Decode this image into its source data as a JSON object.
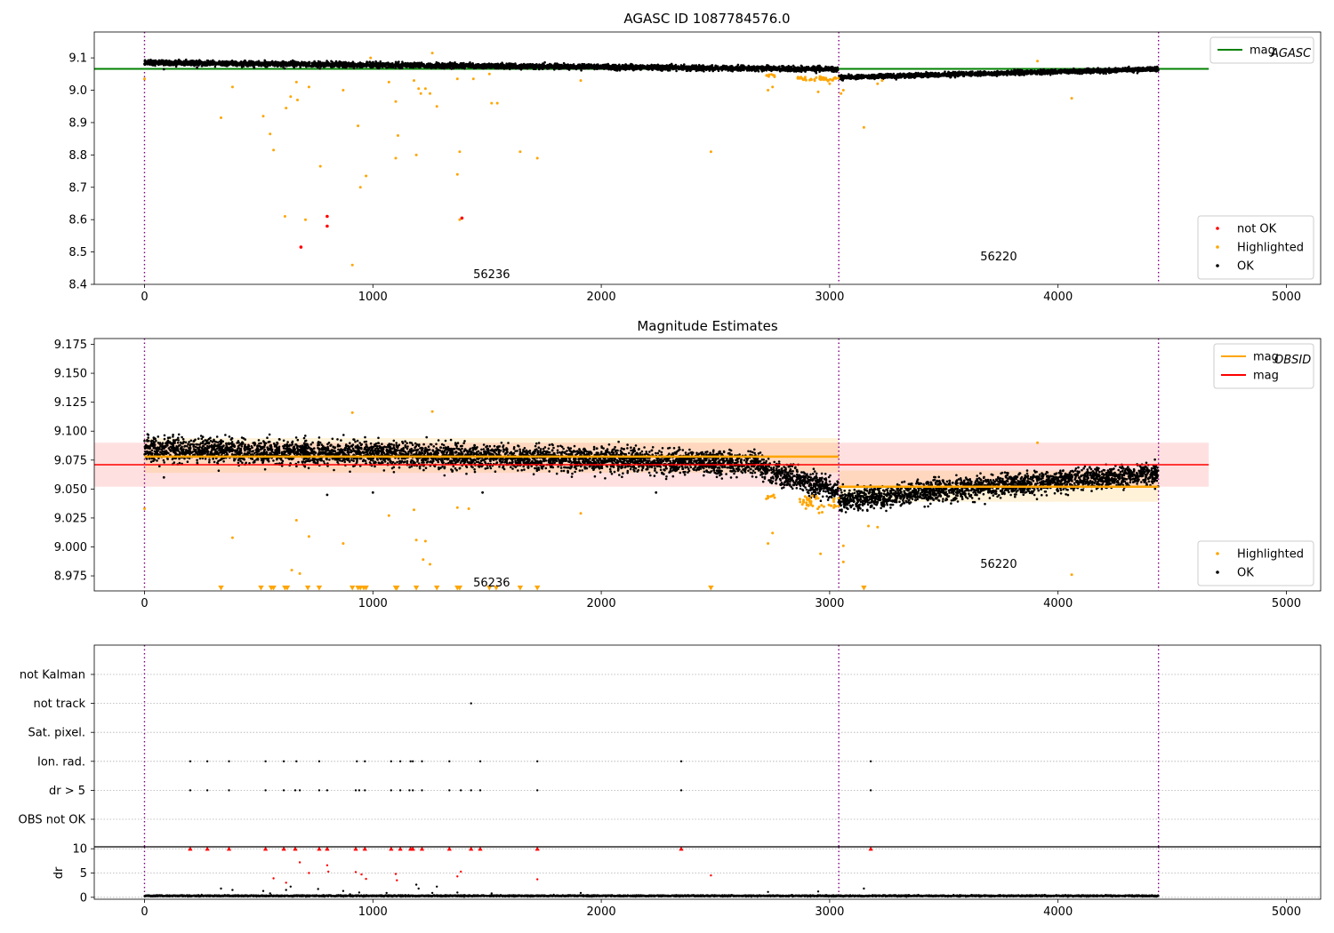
{
  "figure_title": "AGASC ID 1087784576.0",
  "chart_data": [
    {
      "id": "panel1",
      "type": "scatter",
      "title": "",
      "xlim": [
        -220,
        5150
      ],
      "ylim": [
        8.4,
        9.18
      ],
      "xticks": [
        0,
        1000,
        2000,
        3000,
        4000,
        5000
      ],
      "yticks": [
        8.4,
        8.5,
        8.6,
        8.7,
        8.8,
        8.9,
        9.0,
        9.1
      ],
      "ytick_labels": [
        "8.4",
        "8.5",
        "8.6",
        "8.7",
        "8.8",
        "8.9",
        "9.0",
        "9.1"
      ],
      "vlines": [
        0,
        3040,
        4440
      ],
      "hline": {
        "label": "mag_AGASC",
        "value": 9.066,
        "x_range": [
          -220,
          4660
        ],
        "color": "#008000"
      },
      "annotations": [
        {
          "text": "56236",
          "x": 1520,
          "y": 8.43
        },
        {
          "text": "56220",
          "x": 3740,
          "y": 8.485
        }
      ],
      "ok_points": {
        "segments": [
          {
            "x_start": 0,
            "x_end": 3040,
            "start_value": 9.085,
            "end_value": 9.065,
            "noise": 0.008,
            "density": 1.6
          },
          {
            "x_start": 3040,
            "x_end": 4440,
            "start_value": 9.04,
            "end_value": 9.065,
            "noise": 0.007,
            "density": 1.6
          }
        ],
        "extra": [
          [
            85,
            9.065
          ],
          [
            230,
            9.07
          ],
          [
            480,
            9.07
          ],
          [
            1060,
            9.07
          ]
        ]
      },
      "highlighted_points": [
        [
          0,
          9.035
        ],
        [
          335,
          8.915
        ],
        [
          385,
          9.01
        ],
        [
          520,
          8.92
        ],
        [
          550,
          8.865
        ],
        [
          565,
          8.815
        ],
        [
          615,
          8.61
        ],
        [
          620,
          8.945
        ],
        [
          640,
          8.98
        ],
        [
          665,
          9.025
        ],
        [
          670,
          8.97
        ],
        [
          705,
          8.6
        ],
        [
          720,
          9.01
        ],
        [
          770,
          8.765
        ],
        [
          870,
          9.0
        ],
        [
          910,
          8.46
        ],
        [
          935,
          8.89
        ],
        [
          945,
          8.7
        ],
        [
          970,
          8.735
        ],
        [
          990,
          9.1
        ],
        [
          1070,
          9.025
        ],
        [
          1100,
          8.79
        ],
        [
          1100,
          8.965
        ],
        [
          1110,
          8.86
        ],
        [
          1180,
          9.03
        ],
        [
          1190,
          8.8
        ],
        [
          1200,
          9.005
        ],
        [
          1210,
          8.99
        ],
        [
          1230,
          9.005
        ],
        [
          1250,
          8.99
        ],
        [
          1260,
          9.115
        ],
        [
          1280,
          8.95
        ],
        [
          1370,
          8.74
        ],
        [
          1370,
          9.035
        ],
        [
          1380,
          8.81
        ],
        [
          1380,
          8.6
        ],
        [
          1440,
          9.035
        ],
        [
          1510,
          9.05
        ],
        [
          1520,
          8.96
        ],
        [
          1545,
          8.96
        ],
        [
          1645,
          8.81
        ],
        [
          1720,
          8.79
        ],
        [
          1910,
          9.03
        ],
        [
          2480,
          8.81
        ],
        [
          2730,
          9.0
        ],
        [
          2750,
          9.01
        ],
        [
          2950,
          8.995
        ],
        [
          3000,
          9.02
        ],
        [
          3050,
          8.99
        ],
        [
          3060,
          9.0
        ],
        [
          3150,
          8.885
        ],
        [
          3210,
          9.02
        ],
        [
          3230,
          9.03
        ],
        [
          4060,
          8.975
        ],
        [
          3910,
          9.09
        ]
      ],
      "highlighted_clusters": [
        {
          "x_start": 2720,
          "x_end": 2760,
          "center": 9.045,
          "spread": 0.004,
          "count": 10
        },
        {
          "x_start": 2860,
          "x_end": 3040,
          "center": 9.035,
          "spread": 0.006,
          "count": 45
        }
      ],
      "notok_points": [
        [
          685,
          8.515
        ],
        [
          800,
          8.61
        ],
        [
          800,
          8.58
        ],
        [
          1390,
          8.605
        ]
      ],
      "legends": [
        {
          "entries": [
            {
              "label": "mag",
              "subscript": "AGASC",
              "marker": "line",
              "color": "#008000"
            }
          ],
          "position": "top-right"
        },
        {
          "entries": [
            {
              "label": "not OK",
              "marker": "dot",
              "color": "#ff0000"
            },
            {
              "label": "Highlighted",
              "marker": "dot",
              "color": "#ffa500"
            },
            {
              "label": "OK",
              "marker": "dot",
              "color": "#000000"
            }
          ],
          "position": "bottom-right"
        }
      ]
    },
    {
      "id": "panel2",
      "type": "scatter",
      "title": "Magnitude Estimates",
      "xlim": [
        -220,
        5150
      ],
      "ylim": [
        8.962,
        9.18
      ],
      "xticks": [
        0,
        1000,
        2000,
        3000,
        4000,
        5000
      ],
      "yticks": [
        8.975,
        9.0,
        9.025,
        9.05,
        9.075,
        9.1,
        9.125,
        9.15,
        9.175
      ],
      "ytick_labels": [
        "8.975",
        "9.000",
        "9.025",
        "9.050",
        "9.075",
        "9.100",
        "9.125",
        "9.150",
        "9.175"
      ],
      "vlines": [
        0,
        3040,
        4440
      ],
      "mag_band": {
        "value": 9.071,
        "low": 9.052,
        "high": 9.09,
        "x_range": [
          -220,
          4660
        ],
        "color": "#ff0000"
      },
      "obsid_segments": [
        {
          "x_range": [
            0,
            3040
          ],
          "value": 9.078,
          "low": 9.064,
          "high": 9.094
        },
        {
          "x_range": [
            3040,
            4440
          ],
          "value": 9.052,
          "low": 9.039,
          "high": 9.066
        }
      ],
      "annotations": [
        {
          "text": "56236",
          "x": 1520,
          "y": 8.969
        },
        {
          "text": "56220",
          "x": 3740,
          "y": 8.985
        }
      ],
      "ok_points": {
        "segments": [
          {
            "x_start": 0,
            "x_end": 2700,
            "start_value": 9.085,
            "end_value": 9.072,
            "noise": 0.011,
            "density": 1.5
          },
          {
            "x_start": 2700,
            "x_end": 3040,
            "start_value": 9.068,
            "end_value": 9.048,
            "noise": 0.01,
            "density": 1.5
          },
          {
            "x_start": 3040,
            "x_end": 3350,
            "start_value": 9.04,
            "end_value": 9.045,
            "noise": 0.01,
            "density": 1.5
          },
          {
            "x_start": 3350,
            "x_end": 4440,
            "start_value": 9.047,
            "end_value": 9.063,
            "noise": 0.01,
            "density": 1.5
          }
        ],
        "extra": [
          [
            85,
            9.06
          ],
          [
            800,
            9.045
          ],
          [
            1000,
            9.047
          ],
          [
            1480,
            9.047
          ],
          [
            1870,
            9.07
          ],
          [
            2240,
            9.047
          ]
        ]
      },
      "highlighted_points": [
        [
          0,
          9.033
        ],
        [
          385,
          9.008
        ],
        [
          665,
          9.023
        ],
        [
          645,
          8.98
        ],
        [
          680,
          8.977
        ],
        [
          720,
          9.009
        ],
        [
          870,
          9.003
        ],
        [
          910,
          9.116
        ],
        [
          1070,
          9.027
        ],
        [
          1180,
          9.032
        ],
        [
          1190,
          9.006
        ],
        [
          1220,
          8.989
        ],
        [
          1230,
          9.005
        ],
        [
          1260,
          9.117
        ],
        [
          1250,
          8.985
        ],
        [
          1370,
          9.034
        ],
        [
          1420,
          9.033
        ],
        [
          1910,
          9.029
        ],
        [
          2730,
          9.003
        ],
        [
          2750,
          9.012
        ],
        [
          2960,
          8.994
        ],
        [
          3060,
          9.001
        ],
        [
          3060,
          8.987
        ],
        [
          3170,
          9.018
        ],
        [
          3210,
          9.017
        ],
        [
          3910,
          9.09
        ],
        [
          4060,
          8.976
        ]
      ],
      "highlighted_clusters": [
        {
          "x_start": 2720,
          "x_end": 2760,
          "center": 9.043,
          "spread": 0.004,
          "count": 8
        },
        {
          "x_start": 2860,
          "x_end": 3040,
          "center": 9.038,
          "spread": 0.006,
          "count": 45
        }
      ],
      "below_range_markers": [
        335,
        510,
        555,
        565,
        615,
        625,
        715,
        765,
        910,
        935,
        945,
        960,
        970,
        1100,
        1105,
        1190,
        1280,
        1370,
        1380,
        1510,
        1540,
        1645,
        1720,
        2480,
        3150
      ],
      "legends": [
        {
          "entries": [
            {
              "label": "mag",
              "subscript": "OBSID",
              "marker": "line",
              "color": "#ffa500"
            },
            {
              "label": "mag",
              "marker": "line",
              "color": "#ff0000"
            }
          ],
          "position": "top-right"
        },
        {
          "entries": [
            {
              "label": "Highlighted",
              "marker": "dot",
              "color": "#ffa500"
            },
            {
              "label": "OK",
              "marker": "dot",
              "color": "#000000"
            }
          ],
          "position": "bottom-right"
        }
      ]
    },
    {
      "id": "panel3",
      "type": "scatter",
      "title": "",
      "xlim": [
        -220,
        5150
      ],
      "vlines": [
        0,
        3040,
        4440
      ],
      "flags": [
        "not Kalman",
        "not track",
        "Sat. pixel.",
        "Ion. rad.",
        "dr > 5",
        "OBS not OK"
      ],
      "flag_points": {
        "not Kalman": [],
        "not track": [
          1430
        ],
        "Sat. pixel.": [],
        "Ion. rad.": [
          200,
          275,
          370,
          530,
          610,
          665,
          765,
          930,
          965,
          1080,
          1120,
          1165,
          1175,
          1215,
          1335,
          1470,
          1720,
          2350,
          3180
        ],
        "dr > 5": [
          200,
          275,
          370,
          530,
          610,
          660,
          680,
          765,
          800,
          925,
          940,
          965,
          1080,
          1120,
          1160,
          1175,
          1215,
          1335,
          1385,
          1430,
          1470,
          1720,
          2350,
          3180
        ],
        "OBS not OK": []
      }
    },
    {
      "id": "panel4",
      "type": "scatter",
      "title": "",
      "ylabel": "dr",
      "xlim": [
        -220,
        5150
      ],
      "ylim": [
        -0.4,
        10.4
      ],
      "xticks": [
        0,
        1000,
        2000,
        3000,
        4000,
        5000
      ],
      "yticks": [
        0,
        5,
        10
      ],
      "ytick_labels": [
        "0",
        "5",
        "10"
      ],
      "vlines": [
        0,
        3040,
        4440
      ],
      "dr_baseline": {
        "x_range": [
          0,
          4440
        ],
        "center": 0.3,
        "spread": 0.15
      },
      "dr_red": [
        [
          200,
          10
        ],
        [
          275,
          10
        ],
        [
          370,
          10
        ],
        [
          530,
          10
        ],
        [
          610,
          10
        ],
        [
          660,
          10
        ],
        [
          765,
          10
        ],
        [
          800,
          10
        ],
        [
          925,
          10
        ],
        [
          965,
          10
        ],
        [
          1080,
          10
        ],
        [
          1120,
          10
        ],
        [
          1165,
          10
        ],
        [
          1175,
          10
        ],
        [
          1215,
          10
        ],
        [
          1335,
          10
        ],
        [
          1430,
          10
        ],
        [
          1470,
          10
        ],
        [
          1720,
          10
        ],
        [
          2350,
          10
        ],
        [
          3180,
          10
        ],
        [
          565,
          3.9
        ],
        [
          620,
          3.0
        ],
        [
          680,
          7.2
        ],
        [
          720,
          5.0
        ],
        [
          800,
          6.6
        ],
        [
          805,
          5.3
        ],
        [
          925,
          5.2
        ],
        [
          950,
          4.7
        ],
        [
          970,
          3.8
        ],
        [
          1100,
          4.8
        ],
        [
          1105,
          3.5
        ],
        [
          1370,
          4.3
        ],
        [
          1385,
          5.3
        ],
        [
          1720,
          3.7
        ],
        [
          2480,
          4.5
        ]
      ],
      "dr_black": [
        [
          335,
          1.8
        ],
        [
          385,
          1.5
        ],
        [
          520,
          1.3
        ],
        [
          550,
          0.8
        ],
        [
          620,
          1.5
        ],
        [
          640,
          2.2
        ],
        [
          760,
          1.7
        ],
        [
          870,
          1.3
        ],
        [
          900,
          0.6
        ],
        [
          940,
          1.0
        ],
        [
          1060,
          0.9
        ],
        [
          1190,
          2.6
        ],
        [
          1200,
          1.8
        ],
        [
          1260,
          0.9
        ],
        [
          1280,
          2.2
        ],
        [
          1370,
          1.0
        ],
        [
          1520,
          0.8
        ],
        [
          1910,
          0.9
        ],
        [
          2730,
          1.1
        ],
        [
          2950,
          1.2
        ],
        [
          3150,
          1.8
        ]
      ]
    }
  ]
}
